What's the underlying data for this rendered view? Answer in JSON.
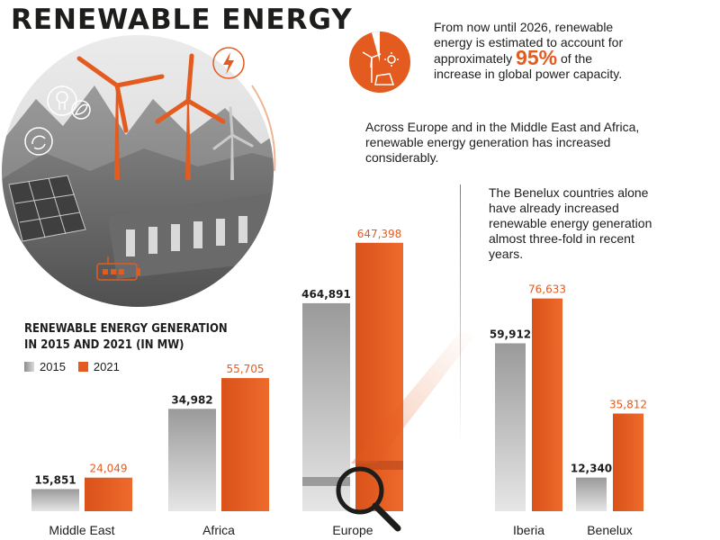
{
  "page": {
    "title": "RENEWABLE ENERGY",
    "stat_text_before": "From now until 2026, renewable energy is estimated to account for approximately",
    "stat_value": "95%",
    "stat_text_after": "of the increase in global power capacity.",
    "europe_text": "Across Europe and in the Middle East and Africa, renewable energy generation has increased considerably.",
    "benelux_text": "The Benelux countries alone have already increased renewable energy generation almost three-fold in recent years."
  },
  "colors": {
    "accent": "#e45b1f",
    "bar2015": "#b3b3b3",
    "bar2021": "#e45b1f",
    "text": "#1d1d1b"
  },
  "icons": [
    "lightbulb-icon",
    "leaf-icon",
    "recycle-icon",
    "lightning-icon",
    "battery-icon",
    "magnifier-icon",
    "wind-turbine-icon",
    "solar-panel-icon",
    "sun-icon"
  ],
  "chart_data": {
    "type": "bar",
    "title": "RENEWABLE ENERGY GENERATION IN 2015 AND 2021 (IN MW)",
    "categories": [
      "Middle East",
      "Africa",
      "Europe",
      "Iberia",
      "Benelux"
    ],
    "series": [
      {
        "name": "2015",
        "values": [
          15851,
          34982,
          464891,
          59912,
          12340
        ],
        "labels": [
          "15,851",
          "34,982",
          "464,891",
          "59,912",
          "12,340"
        ]
      },
      {
        "name": "2021",
        "values": [
          24049,
          55705,
          647398,
          76633,
          35812
        ],
        "labels": [
          "24,049",
          "55,705",
          "647,398",
          "76,633",
          "35,812"
        ]
      }
    ],
    "grid": false,
    "legend": "top-left"
  }
}
